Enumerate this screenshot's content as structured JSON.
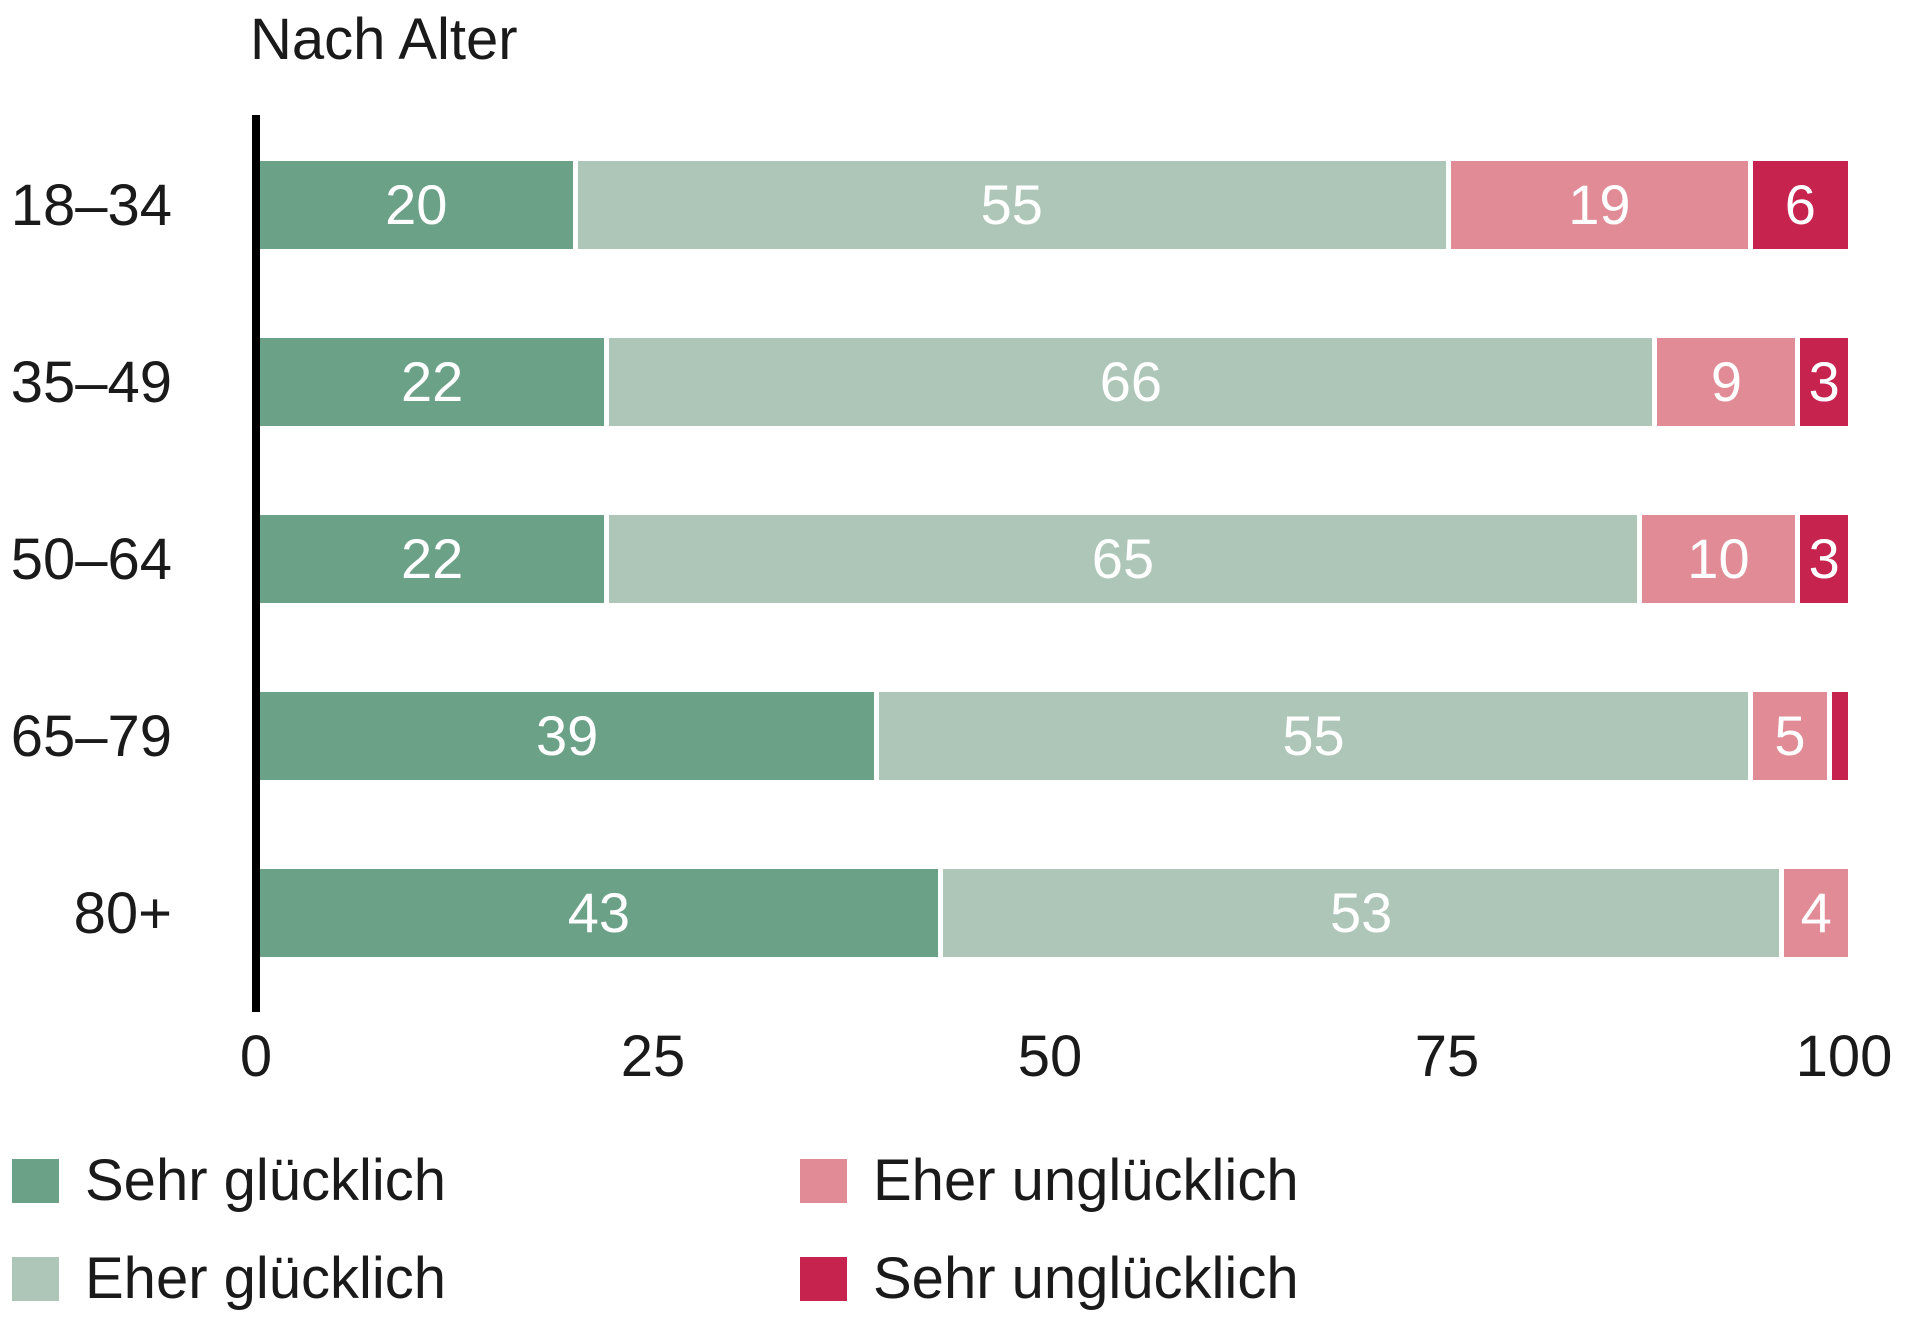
{
  "chart_data": {
    "type": "bar",
    "orientation": "horizontal",
    "stacked": true,
    "title": "Nach Alter",
    "categories": [
      "18–34",
      "35–49",
      "50–64",
      "65–79",
      "80+"
    ],
    "series": [
      {
        "id": "sehr-gluecklich",
        "name": "Sehr glücklich",
        "color": "#6ba287",
        "values": [
          20,
          22,
          22,
          39,
          43
        ]
      },
      {
        "id": "eher-gluecklich",
        "name": "Eher glücklich",
        "color": "#adc6b7",
        "values": [
          55,
          66,
          65,
          55,
          53
        ]
      },
      {
        "id": "eher-ungluecklich",
        "name": "Eher unglücklich",
        "color": "#e18b96",
        "values": [
          19,
          9,
          10,
          5,
          4
        ]
      },
      {
        "id": "sehr-ungluecklich",
        "name": "Sehr unglücklich",
        "color": "#c7234f",
        "values": [
          6,
          3,
          3,
          1,
          0
        ]
      }
    ],
    "x_ticks": [
      0,
      25,
      50,
      75,
      100
    ],
    "xlim": [
      0,
      100
    ],
    "value_label_min": 3,
    "value_label_color": "#ffffff",
    "axis_color": "#000000",
    "text_color": "#1a1a1a",
    "legend_position": "bottom",
    "grid": false
  }
}
